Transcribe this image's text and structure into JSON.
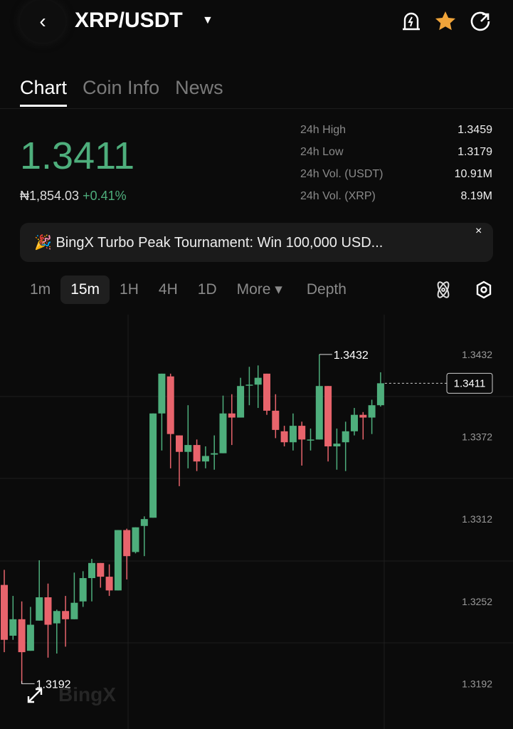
{
  "header": {
    "title": "XRP/USDT",
    "back_icon": "chevron-left-icon",
    "dropdown_icon": "caret-down-icon",
    "icons": [
      "alert-bell-icon",
      "star-icon",
      "share-icon"
    ],
    "star_color": "#f0a43a"
  },
  "tabs": [
    {
      "label": "Chart",
      "active": true
    },
    {
      "label": "Coin Info"
    },
    {
      "label": "News"
    }
  ],
  "ticker": {
    "price": "1.3411",
    "fiat": "₦1,854.03",
    "change": "+0.41%",
    "color": "#4eae7c"
  },
  "stats": [
    {
      "label": "24h High",
      "value": "1.3459"
    },
    {
      "label": "24h Low",
      "value": "1.3179"
    },
    {
      "label": "24h Vol. (USDT)",
      "value": "10.91M"
    },
    {
      "label": "24h Vol. (XRP)",
      "value": "8.19M"
    }
  ],
  "banner": {
    "icon": "party-popper-icon",
    "text": "🎉 BingX Turbo Peak Tournament: Win 100,000 USD...",
    "close": "×"
  },
  "intervals": {
    "items": [
      "1m",
      "15m",
      "1H",
      "4H",
      "1D",
      "More ▾",
      "Depth"
    ],
    "selected": "15m",
    "icons": [
      "indicator-icon",
      "settings-icon"
    ]
  },
  "watermark": "BingX",
  "chart_data": {
    "type": "candlestick",
    "ytick_labels": [
      "1.3432",
      "1.3372",
      "1.3312",
      "1.3252",
      "1.3192"
    ],
    "yticks": [
      1.3432,
      1.3372,
      1.3312,
      1.3252,
      1.3192
    ],
    "ylim": [
      1.3159,
      1.3461
    ],
    "current_price": "1.3411",
    "max_label": "1.3432",
    "min_label": "1.3192",
    "up_color": "#4eae7c",
    "down_color": "#e8646c",
    "candles": [
      [
        1.3264,
        1.3275,
        1.3215,
        1.3224
      ],
      [
        1.3227,
        1.3256,
        1.3224,
        1.3239
      ],
      [
        1.3239,
        1.3252,
        1.3192,
        1.3215
      ],
      [
        1.3216,
        1.3248,
        1.3216,
        1.3235
      ],
      [
        1.3238,
        1.3282,
        1.3238,
        1.3255
      ],
      [
        1.3255,
        1.3265,
        1.3211,
        1.3235
      ],
      [
        1.3236,
        1.3246,
        1.3214,
        1.3245
      ],
      [
        1.3245,
        1.3256,
        1.3219,
        1.3239
      ],
      [
        1.3239,
        1.3273,
        1.3239,
        1.3251
      ],
      [
        1.3252,
        1.3274,
        1.3248,
        1.3269
      ],
      [
        1.3269,
        1.3283,
        1.3252,
        1.328
      ],
      [
        1.328,
        1.328,
        1.3262,
        1.327
      ],
      [
        1.327,
        1.3279,
        1.3256,
        1.326
      ],
      [
        1.326,
        1.3304,
        1.326,
        1.3304
      ],
      [
        1.3304,
        1.3305,
        1.3268,
        1.3285
      ],
      [
        1.3288,
        1.3306,
        1.3287,
        1.3306
      ],
      [
        1.3307,
        1.3314,
        1.3285,
        1.3312
      ],
      [
        1.3313,
        1.3389,
        1.3313,
        1.3389
      ],
      [
        1.3389,
        1.3418,
        1.3362,
        1.3418
      ],
      [
        1.3416,
        1.3418,
        1.3349,
        1.3374
      ],
      [
        1.3373,
        1.3373,
        1.3336,
        1.3361
      ],
      [
        1.3361,
        1.3395,
        1.3349,
        1.3366
      ],
      [
        1.3366,
        1.337,
        1.3347,
        1.3354
      ],
      [
        1.3354,
        1.3365,
        1.3349,
        1.3358
      ],
      [
        1.3359,
        1.3373,
        1.3348,
        1.336
      ],
      [
        1.336,
        1.3402,
        1.336,
        1.3389
      ],
      [
        1.3389,
        1.3403,
        1.3366,
        1.3386
      ],
      [
        1.3386,
        1.3415,
        1.3386,
        1.3409
      ],
      [
        1.341,
        1.3423,
        1.3395,
        1.341
      ],
      [
        1.341,
        1.3424,
        1.3393,
        1.3415
      ],
      [
        1.3418,
        1.3418,
        1.3388,
        1.3391
      ],
      [
        1.3391,
        1.3403,
        1.3371,
        1.3377
      ],
      [
        1.3376,
        1.338,
        1.3365,
        1.3368
      ],
      [
        1.3368,
        1.3389,
        1.3362,
        1.338
      ],
      [
        1.338,
        1.3383,
        1.3351,
        1.337
      ],
      [
        1.337,
        1.3378,
        1.3362,
        1.337
      ],
      [
        1.337,
        1.3432,
        1.337,
        1.3409
      ],
      [
        1.3409,
        1.3409,
        1.3354,
        1.3365
      ],
      [
        1.3365,
        1.3378,
        1.3348,
        1.3367
      ],
      [
        1.3368,
        1.3383,
        1.3347,
        1.3376
      ],
      [
        1.3376,
        1.3393,
        1.3373,
        1.3388
      ],
      [
        1.3388,
        1.339,
        1.337,
        1.3386
      ],
      [
        1.3386,
        1.3399,
        1.3374,
        1.3395
      ],
      [
        1.3395,
        1.3419,
        1.3394,
        1.3411
      ]
    ]
  }
}
